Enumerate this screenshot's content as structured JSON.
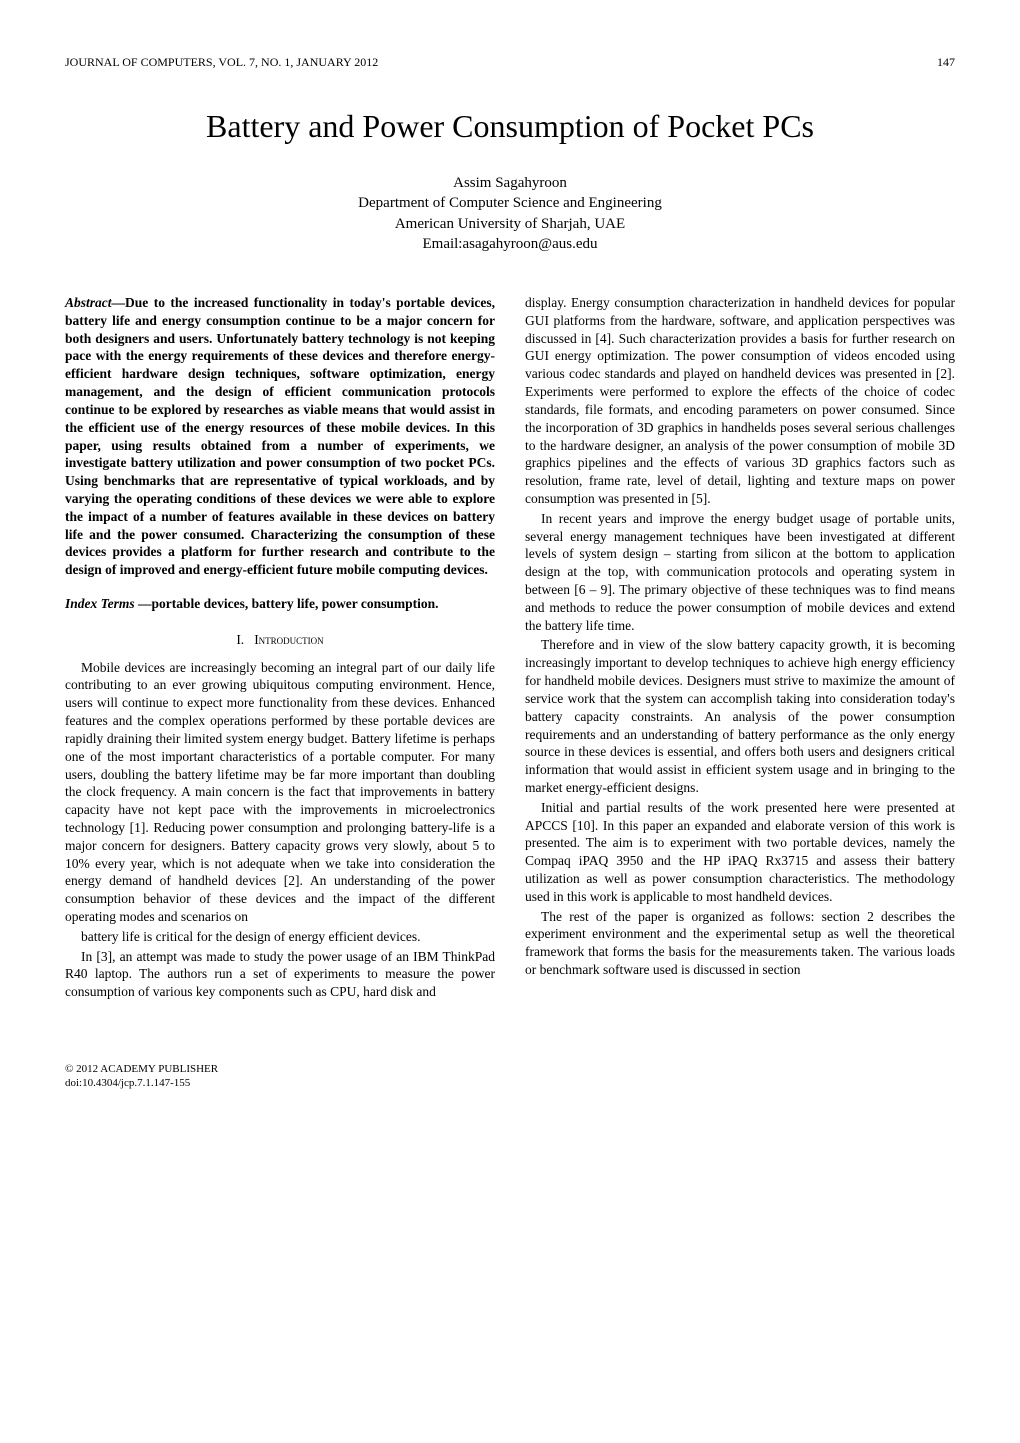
{
  "header": {
    "journal_line": "JOURNAL OF COMPUTERS, VOL. 7, NO. 1, JANUARY 2012",
    "page_number": "147"
  },
  "title": "Battery and Power Consumption of Pocket PCs",
  "author": {
    "name": "Assim Sagahyroon",
    "affiliation_line1": "Department of Computer Science and Engineering",
    "affiliation_line2": "American University of Sharjah, UAE",
    "email": "Email:asagahyroon@aus.edu"
  },
  "abstract": {
    "label": "Abstract",
    "dash": "—",
    "text": "Due to the increased functionality in today's portable devices, battery life and energy consumption continue to be a major concern for both designers and users. Unfortunately battery technology is not keeping pace with the energy requirements of these devices and therefore energy-efficient hardware design techniques, software optimization, energy management, and the design of efficient communication protocols continue to be explored by researches as viable means that would assist in the efficient use of the energy resources of these mobile devices. In this paper, using results obtained from a number of experiments, we investigate battery utilization and power consumption of two pocket PCs. Using benchmarks that are representative of typical workloads, and by varying the operating conditions of these devices we were able to explore the impact of  a number of features available in these devices on battery life and the power consumed. Characterizing the consumption of these devices provides a platform for further research and contribute to the design of improved and energy-efficient future mobile computing devices."
  },
  "index_terms": {
    "label": "Index Terms",
    "dash": " —",
    "text": "portable devices, battery life, power consumption."
  },
  "section1": {
    "num": "I.",
    "heading": "Introduction"
  },
  "left_paras": {
    "p1": "Mobile devices are increasingly becoming an integral part of our daily life contributing to an ever growing ubiquitous computing environment. Hence, users will continue to expect more functionality from these devices. Enhanced features and the complex operations performed by these portable devices are rapidly draining their limited system energy budget.  Battery lifetime is perhaps one of the most important characteristics of a portable computer. For many users, doubling the battery lifetime may be far more important than doubling the clock frequency. A main concern is the fact that improvements in battery capacity have not kept pace with the improvements in microelectronics technology [1]. Reducing power consumption and prolonging battery-life is a major concern for designers. Battery capacity grows very slowly, about 5 to 10% every year, which is not adequate when we take into consideration the energy demand of handheld devices [2].  An understanding of the power consumption behavior of these devices and the impact of the different operating modes and scenarios on",
    "p2": "battery life is critical for the design of  energy efficient devices.",
    "p3": "In [3], an attempt was made to study the power usage of an IBM ThinkPad R40 laptop. The authors run a set of experiments to measure the power consumption of various key components such as CPU, hard disk and"
  },
  "right_paras": {
    "p1": "display. Energy consumption characterization in handheld devices for popular GUI platforms from the hardware, software, and application perspectives was discussed in [4]. Such characterization provides a basis for further research on GUI energy optimization. The power consumption of videos encoded using various codec standards and played on handheld devices was presented in [2]. Experiments were performed to explore the effects of the choice of codec standards, file formats, and encoding parameters on power consumed. Since the incorporation of 3D graphics in handhelds poses several serious challenges to the hardware designer, an analysis of the power consumption of mobile 3D graphics pipelines and the effects of various 3D graphics factors such as resolution, frame rate, level of detail, lighting and texture maps on power consumption was presented in [5].",
    "p2": " In recent years and improve the energy budget usage of portable units, several energy management techniques have been investigated at different levels of system design – starting from silicon at the bottom to application design at the top, with communication protocols and operating system in between [6 – 9]. The primary objective of these techniques was to find means and methods to reduce the power consumption of mobile devices and extend the battery life time.",
    "p3": "Therefore and in view of the slow battery capacity growth, it is becoming increasingly important to develop techniques to achieve high energy efficiency for handheld mobile devices. Designers must strive to maximize the amount of service work that the system can accomplish taking into consideration today's battery capacity constraints. An analysis of the power consumption requirements and an understanding of battery performance as the only energy source in these devices is essential, and offers both users and designers critical information that would assist in efficient system usage and in bringing to the market energy-efficient designs.",
    "p4": "Initial and partial results of the work presented here were presented at APCCS [10]. In this paper  an expanded and elaborate version of this work is presented. The aim is to experiment with two portable devices, namely the Compaq iPAQ 3950 and the HP iPAQ Rx3715 and assess their battery utilization as well as power consumption characteristics. The methodology used in this work is applicable to most handheld devices.",
    "p5": "The rest of the paper is organized as follows: section 2 describes the experiment environment and the experimental setup as well the theoretical framework that forms the basis for the measurements taken. The various loads or benchmark software used is discussed in section"
  },
  "footer": {
    "copyright": "© 2012 ACADEMY PUBLISHER",
    "doi": "doi:10.4304/jcp.7.1.147-155"
  },
  "colors": {
    "text": "#000000",
    "background": "#ffffff"
  },
  "fonts": {
    "body_family": "Times New Roman",
    "title_size_pt": 24,
    "body_size_pt": 10,
    "header_size_pt": 9
  }
}
